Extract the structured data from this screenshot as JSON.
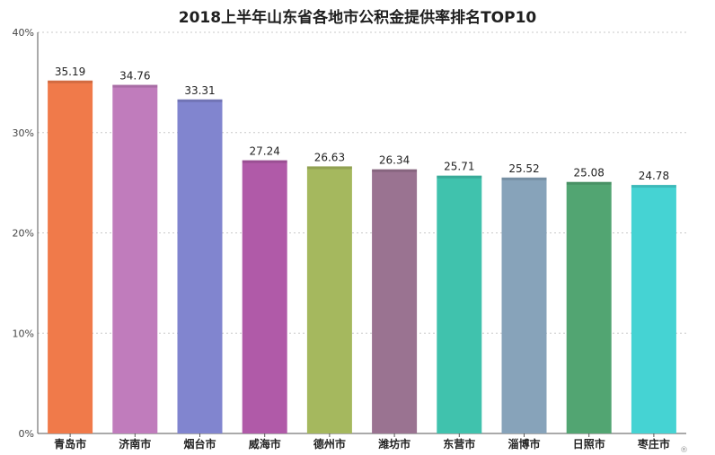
{
  "chart_data": {
    "type": "bar",
    "title": "2018上半年山东省各地市公积金提供率排名TOP10",
    "categories": [
      "青岛市",
      "济南市",
      "烟台市",
      "威海市",
      "德州市",
      "潍坊市",
      "东营市",
      "淄博市",
      "日照市",
      "枣庄市"
    ],
    "values": [
      35.19,
      34.76,
      33.31,
      27.24,
      26.63,
      26.34,
      25.71,
      25.52,
      25.08,
      24.78
    ],
    "value_labels": [
      "35.19",
      "34.76",
      "33.31",
      "27.24",
      "26.63",
      "26.34",
      "25.71",
      "25.52",
      "25.08",
      "24.78"
    ],
    "colors": [
      "#f07a4a",
      "#c07cbc",
      "#8185cf",
      "#b05aa8",
      "#a5b85e",
      "#9a7391",
      "#40c2ad",
      "#87a3ba",
      "#52a572",
      "#45d3d3"
    ],
    "ylim": [
      0,
      40
    ],
    "yticks": [
      0,
      10,
      20,
      30,
      40
    ],
    "ytick_labels": [
      "0%",
      "10%",
      "20%",
      "30%",
      "40%"
    ],
    "grid": true,
    "xlabel": "",
    "ylabel": ""
  },
  "watermark": "®"
}
